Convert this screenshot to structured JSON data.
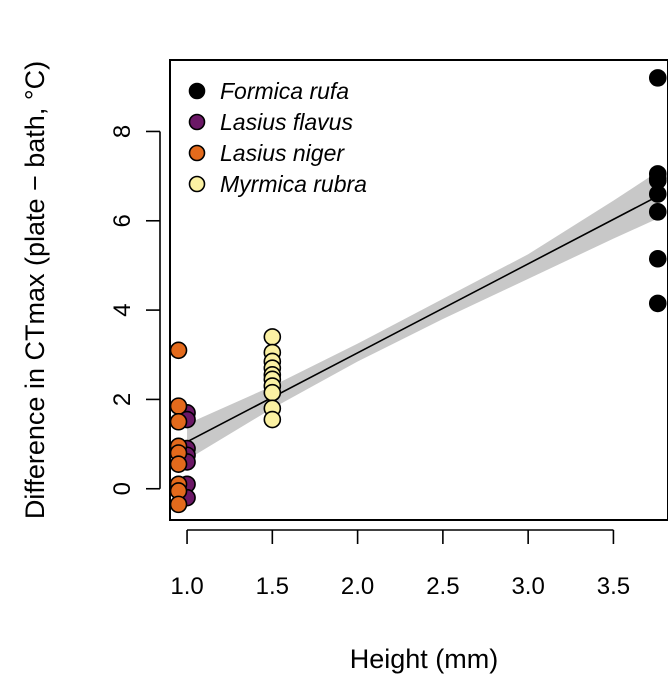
{
  "chart_data": {
    "type": "scatter",
    "xlabel": "Height (mm)",
    "ylabel": "Difference in CTmax (plate − bath, °C)",
    "xlim": [
      0.9,
      3.82
    ],
    "ylim": [
      -0.7,
      9.6
    ],
    "x_ticks": [
      "1.0",
      "1.5",
      "2.0",
      "2.5",
      "3.0",
      "3.5"
    ],
    "y_ticks": [
      "0",
      "2",
      "4",
      "6",
      "8"
    ],
    "grid": false,
    "legend_position": "top-left",
    "series": [
      {
        "name": "Formica rufa",
        "color": "#000000",
        "points": [
          [
            3.76,
            9.2
          ],
          [
            3.76,
            7.05
          ],
          [
            3.76,
            6.95
          ],
          [
            3.76,
            6.9
          ],
          [
            3.76,
            6.6
          ],
          [
            3.76,
            6.2
          ],
          [
            3.76,
            5.15
          ],
          [
            3.76,
            4.15
          ]
        ]
      },
      {
        "name": "Lasius flavus",
        "color": "#6b1866",
        "points": [
          [
            1.0,
            1.7
          ],
          [
            1.0,
            1.55
          ],
          [
            1.0,
            0.9
          ],
          [
            1.0,
            0.75
          ],
          [
            1.0,
            0.6
          ],
          [
            1.0,
            0.1
          ],
          [
            1.0,
            -0.2
          ]
        ]
      },
      {
        "name": "Lasius niger",
        "color": "#e36a1c",
        "points": [
          [
            0.95,
            3.1
          ],
          [
            0.95,
            1.85
          ],
          [
            0.95,
            1.5
          ],
          [
            0.95,
            0.95
          ],
          [
            0.95,
            0.8
          ],
          [
            0.95,
            0.55
          ],
          [
            0.95,
            0.1
          ],
          [
            0.95,
            -0.05
          ],
          [
            0.95,
            -0.35
          ]
        ]
      },
      {
        "name": "Myrmica rubra",
        "color": "#fbf1a3",
        "points": [
          [
            1.5,
            3.4
          ],
          [
            1.5,
            3.05
          ],
          [
            1.5,
            2.85
          ],
          [
            1.5,
            2.7
          ],
          [
            1.5,
            2.55
          ],
          [
            1.5,
            2.45
          ],
          [
            1.5,
            2.3
          ],
          [
            1.5,
            2.15
          ],
          [
            1.5,
            1.8
          ],
          [
            1.5,
            1.55
          ]
        ]
      }
    ],
    "fit_line": {
      "x": [
        1.0,
        3.76
      ],
      "y": [
        1.05,
        6.55
      ]
    },
    "confidence_band": {
      "x": [
        1.0,
        1.5,
        2.0,
        2.5,
        3.0,
        3.5,
        3.76
      ],
      "lower": [
        0.65,
        1.8,
        2.85,
        3.8,
        4.7,
        5.6,
        6.05
      ],
      "upper": [
        1.45,
        2.3,
        3.25,
        4.25,
        5.25,
        6.45,
        7.1
      ]
    }
  }
}
